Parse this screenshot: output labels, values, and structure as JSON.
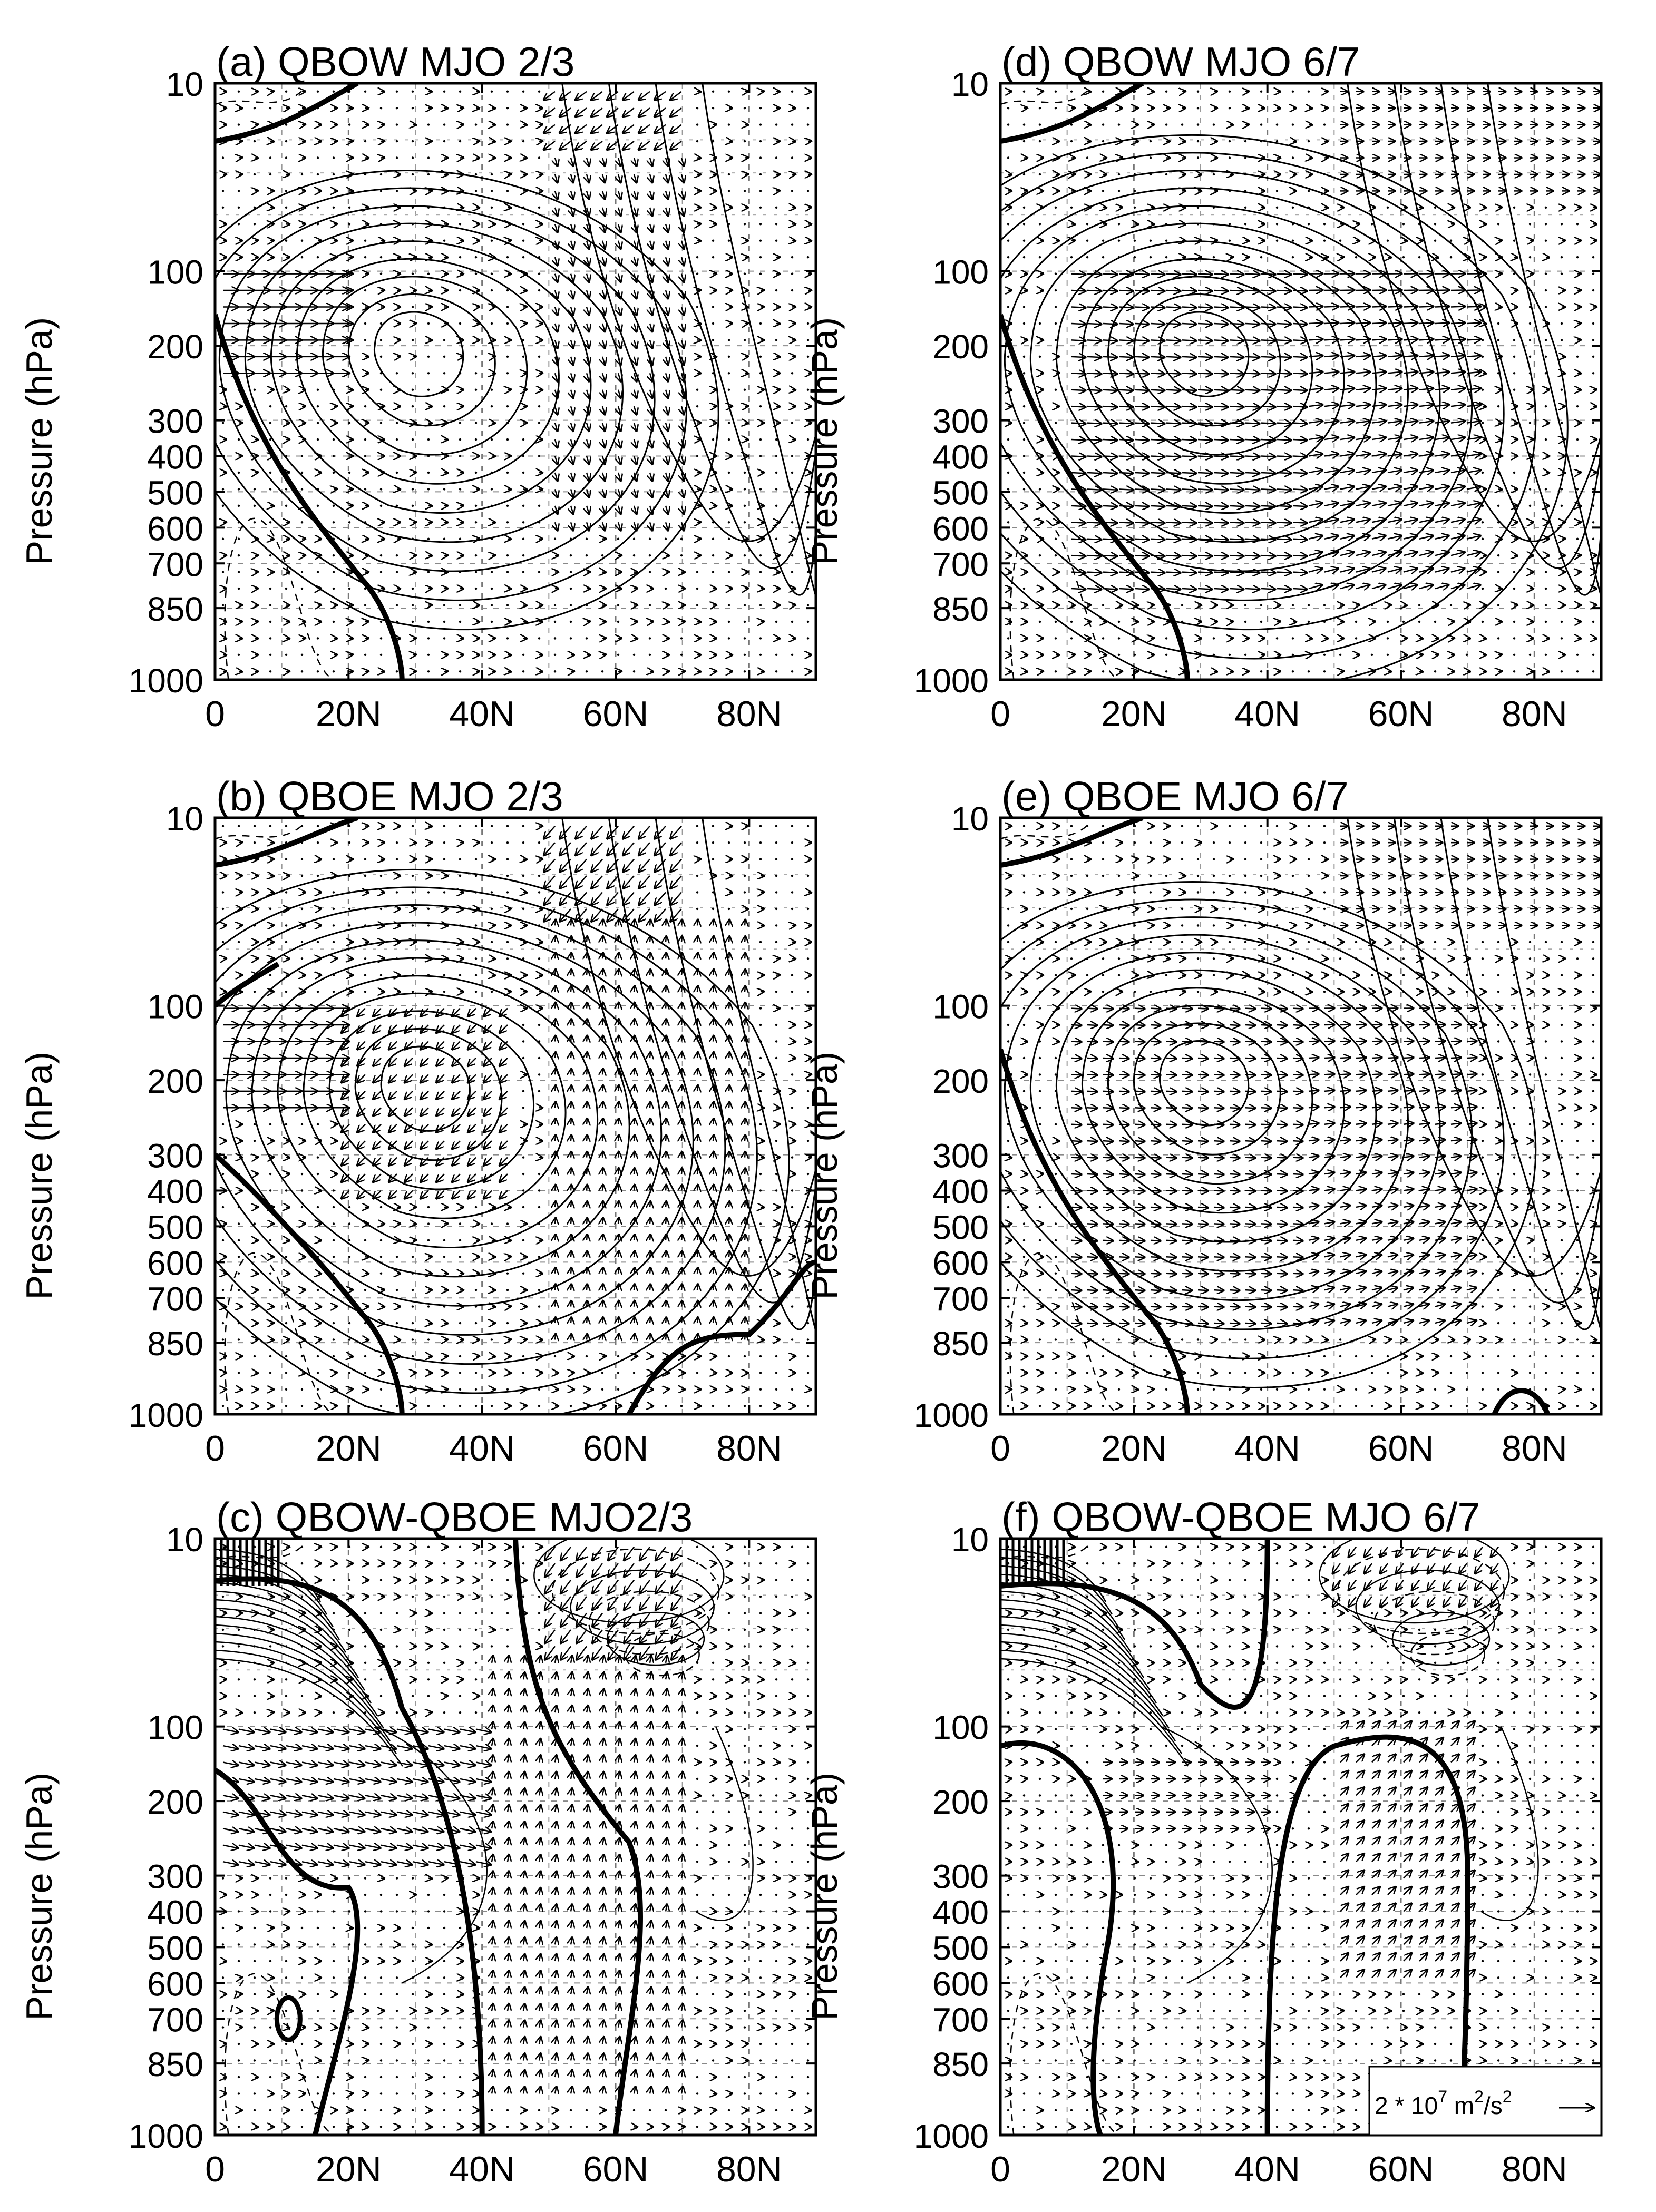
{
  "chart_data": {
    "type": "contour-vector",
    "description_units": {
      "vector_reference_label": "2 * 10",
      "vector_reference_exp": "7",
      "vector_reference_unit": "m",
      "vector_reference_unit_exp": "2",
      "vector_reference_unit_denom": "/s",
      "vector_reference_denom_exp": "2"
    },
    "xticks": [
      "0",
      "20N",
      "40N",
      "60N",
      "80N"
    ],
    "x_values": [
      0,
      20,
      40,
      60,
      80
    ],
    "xlim": [
      0,
      90
    ],
    "yticks": [
      "10",
      "100",
      "200",
      "300",
      "400",
      "500",
      "600",
      "700",
      "850",
      "1000"
    ],
    "y_values": [
      10,
      100,
      200,
      300,
      400,
      500,
      600,
      700,
      850,
      1000
    ],
    "ylim": [
      10,
      1000
    ],
    "ylabel": "Pressure (hPa)",
    "panels": [
      {
        "id": "a",
        "title": "(a) QBOW MJO 2/3",
        "jet_center": [
          30,
          200
        ],
        "rings": 9,
        "vec_region": "equatorial+high-lat"
      },
      {
        "id": "b",
        "title": "(b) QBOE MJO 2/3",
        "jet_center": [
          31,
          200
        ],
        "rings": 11,
        "vec_region": "converging"
      },
      {
        "id": "c",
        "title": "(c) QBOW-QBOE MJO2/3",
        "jet_center": null,
        "rings": 0,
        "vec_region": "difference"
      },
      {
        "id": "d",
        "title": "(d) QBOW MJO 6/7",
        "jet_center": [
          30,
          200
        ],
        "rings": 11,
        "vec_region": "poleward"
      },
      {
        "id": "e",
        "title": "(e) QBOE MJO 6/7",
        "jet_center": [
          30,
          190
        ],
        "rings": 10,
        "vec_region": "poleward-weak"
      },
      {
        "id": "f",
        "title": "(f) QBOW-QBOE MJO 6/7",
        "jet_center": null,
        "rings": 0,
        "vec_region": "difference"
      }
    ]
  }
}
